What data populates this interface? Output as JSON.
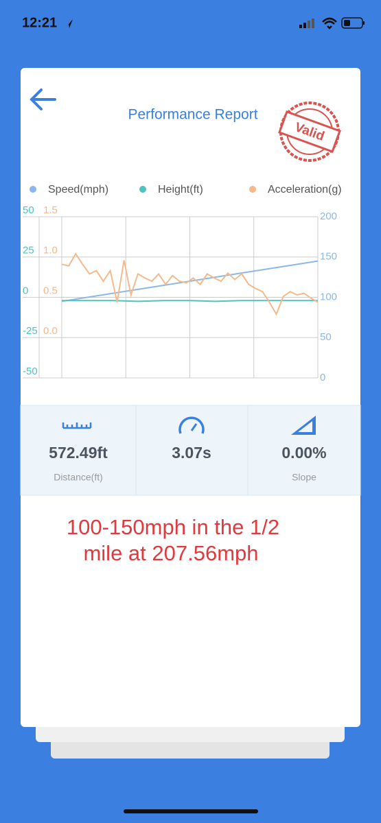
{
  "status_bar": {
    "time": "12:21"
  },
  "header": {
    "title": "Performance Report",
    "stamp": "Valid"
  },
  "chart_data": {
    "type": "line",
    "series": [
      {
        "name": "Speed(mph)",
        "color": "#8ab8e8",
        "axis": "y2",
        "values": [
          95,
          100,
          105,
          110,
          115,
          120,
          125,
          130,
          135,
          140,
          145
        ]
      },
      {
        "name": "Height(ft)",
        "color": "#4fc3c0",
        "axis": "y",
        "values": [
          -2,
          -2,
          -2,
          -2.5,
          -2,
          -2,
          -2.5,
          -2,
          -2,
          -2,
          -2
        ]
      },
      {
        "name": "Acceleration(g)",
        "color": "#f5b98a",
        "axis": "y3",
        "values": [
          0.91,
          0.89,
          1.04,
          0.91,
          0.79,
          0.83,
          0.7,
          0.83,
          0.44,
          0.96,
          0.53,
          0.79,
          0.74,
          0.7,
          0.79,
          0.66,
          0.77,
          0.7,
          0.68,
          0.74,
          0.66,
          0.79,
          0.74,
          0.7,
          0.8,
          0.72,
          0.79,
          0.66,
          0.61,
          0.57,
          0.44,
          0.29,
          0.51,
          0.57,
          0.53,
          0.55,
          0.49,
          0.44
        ]
      }
    ],
    "ylim": [
      -50,
      50
    ],
    "yticks": [
      -50,
      -25,
      0,
      25,
      50
    ],
    "y3lim": [
      -0.5,
      1.5
    ],
    "y3ticks": [
      {
        "value": 0,
        "label": "0.0"
      },
      0.5,
      {
        "value": 1,
        "label": "1.0"
      },
      1.5
    ],
    "y2lim": [
      0,
      200
    ],
    "y2ticks": [
      0,
      50,
      100,
      150,
      200
    ],
    "grid": true
  },
  "stats": [
    {
      "value": "572.49ft",
      "label": "Distance(ft)"
    },
    {
      "value": "3.07s"
    },
    {
      "value": "0.00%",
      "label": "Slope"
    }
  ],
  "note": [
    "100-150mph in the 1/2",
    "mile at 207.56mph"
  ]
}
